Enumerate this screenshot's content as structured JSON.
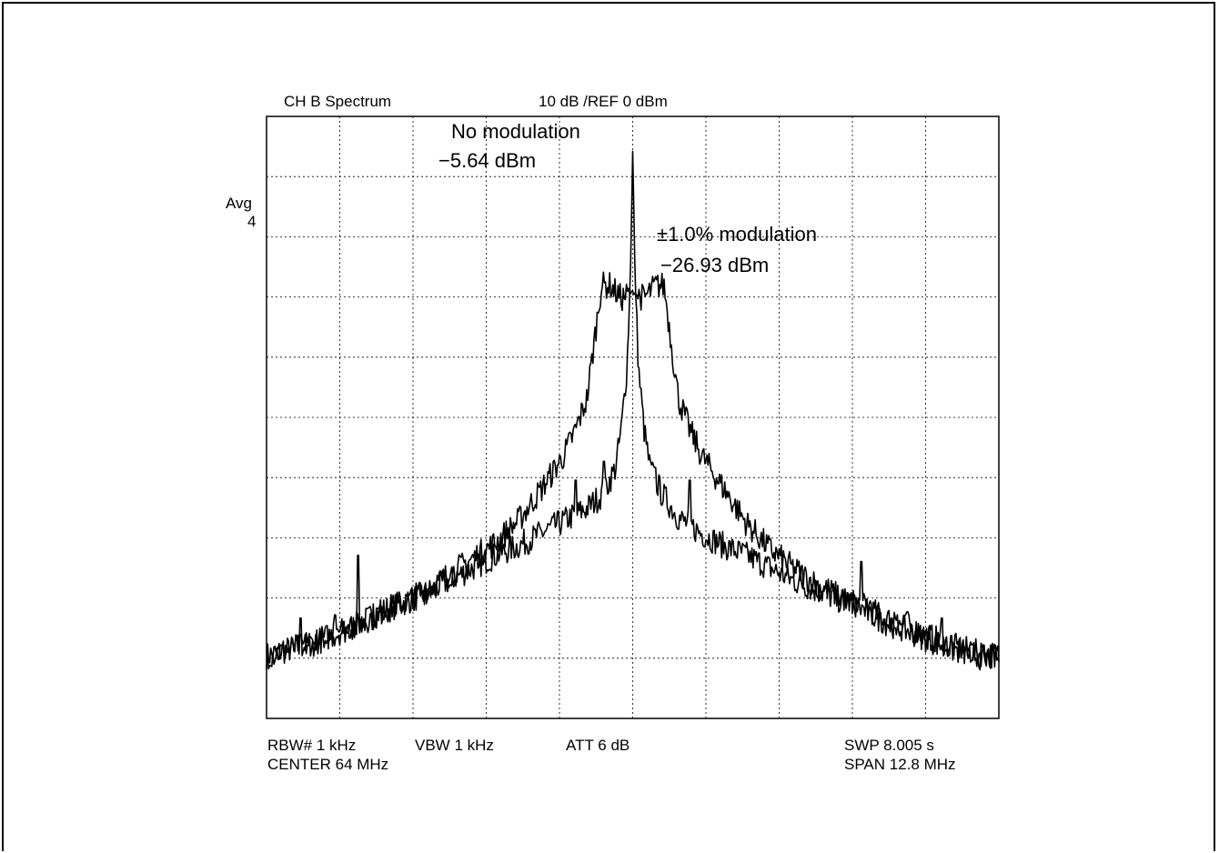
{
  "screen": {
    "channel_title": "CH B Spectrum",
    "scale_ref": "10 dB /REF 0 dBm",
    "avg_label": "Avg",
    "avg_count": "4",
    "footer": {
      "rbw": "RBW# 1 kHz",
      "vbw": "VBW 1 kHz",
      "att": "ATT 6 dB",
      "center": "CENTER  64 MHz",
      "swp": "SWP  8.005 s",
      "span": "SPAN   12.8 MHz"
    }
  },
  "chart_data": {
    "type": "line",
    "title": "CH B Spectrum",
    "y_unit": "dBm",
    "center_mhz": 64,
    "span_mhz": 12.8,
    "ref_level_dbm": 0,
    "db_per_div": 10,
    "xlim": [
      57.6,
      70.4
    ],
    "ylim": [
      -96,
      0
    ],
    "grid": true,
    "annotations": [
      {
        "line1": "No modulation",
        "line2": "−5.64 dBm",
        "target": "unmodulated"
      },
      {
        "line1": "±1.0% modulation",
        "line2": "−26.93 dBm",
        "target": "modulated"
      }
    ],
    "series": [
      {
        "id": "unmodulated",
        "x": [
          57.6,
          58.0,
          58.4,
          58.8,
          59.2,
          59.6,
          60.0,
          60.4,
          60.8,
          61.2,
          61.6,
          62.0,
          62.4,
          62.8,
          63.2,
          63.5,
          63.7,
          63.8,
          63.9,
          63.96,
          64.0,
          64.04,
          64.1,
          64.2,
          64.3,
          64.5,
          64.8,
          65.2,
          65.6,
          66.0,
          66.4,
          66.8,
          67.2,
          67.6,
          68.0,
          68.4,
          68.8,
          69.2,
          69.6,
          70.0,
          70.4
        ],
        "y": [
          -86.0,
          -85.0,
          -84.0,
          -82.5,
          -81.0,
          -79.0,
          -77.5,
          -76.0,
          -74.0,
          -72.0,
          -70.0,
          -68.5,
          -66.5,
          -64.5,
          -62.5,
          -60.0,
          -56.0,
          -50.0,
          -40.0,
          -25.0,
          -5.64,
          -25.0,
          -40.0,
          -50.0,
          -56.0,
          -60.0,
          -64.0,
          -66.5,
          -68.5,
          -70.0,
          -72.0,
          -74.0,
          -75.5,
          -77.0,
          -78.0,
          -80.0,
          -81.5,
          -83.0,
          -84.5,
          -85.5,
          -86.0
        ],
        "spikes": [
          [
            58.2,
            -80.0
          ],
          [
            58.8,
            -79.5
          ],
          [
            59.2,
            -70.0
          ],
          [
            63.0,
            -58.0
          ],
          [
            63.5,
            -55.0
          ],
          [
            64.4,
            -56.0
          ],
          [
            65.0,
            -58.0
          ],
          [
            68.0,
            -71.0
          ],
          [
            68.8,
            -79.0
          ],
          [
            69.4,
            -80.0
          ]
        ]
      },
      {
        "id": "modulated",
        "x": [
          57.6,
          58.0,
          58.4,
          58.8,
          59.2,
          59.6,
          60.0,
          60.4,
          60.8,
          61.2,
          61.6,
          62.0,
          62.4,
          62.8,
          63.0,
          63.2,
          63.3,
          63.45,
          63.6,
          63.8,
          64.0,
          64.2,
          64.4,
          64.55,
          64.7,
          64.8,
          65.0,
          65.2,
          65.6,
          66.0,
          66.4,
          66.8,
          67.2,
          67.6,
          68.0,
          68.4,
          68.8,
          69.2,
          69.6,
          70.0,
          70.4
        ],
        "y": [
          -86.0,
          -85.0,
          -84.0,
          -82.5,
          -81.0,
          -79.0,
          -77.5,
          -75.5,
          -73.0,
          -70.5,
          -68.0,
          -64.5,
          -59.5,
          -54.0,
          -50.0,
          -45.0,
          -38.0,
          -27.0,
          -26.93,
          -29.0,
          -28.0,
          -29.0,
          -26.93,
          -27.0,
          -38.0,
          -45.0,
          -50.0,
          -54.0,
          -59.5,
          -65.0,
          -69.0,
          -72.0,
          -74.5,
          -76.5,
          -78.5,
          -80.5,
          -82.0,
          -83.5,
          -85.0,
          -86.0,
          -86.5
        ],
        "spikes": []
      }
    ]
  }
}
